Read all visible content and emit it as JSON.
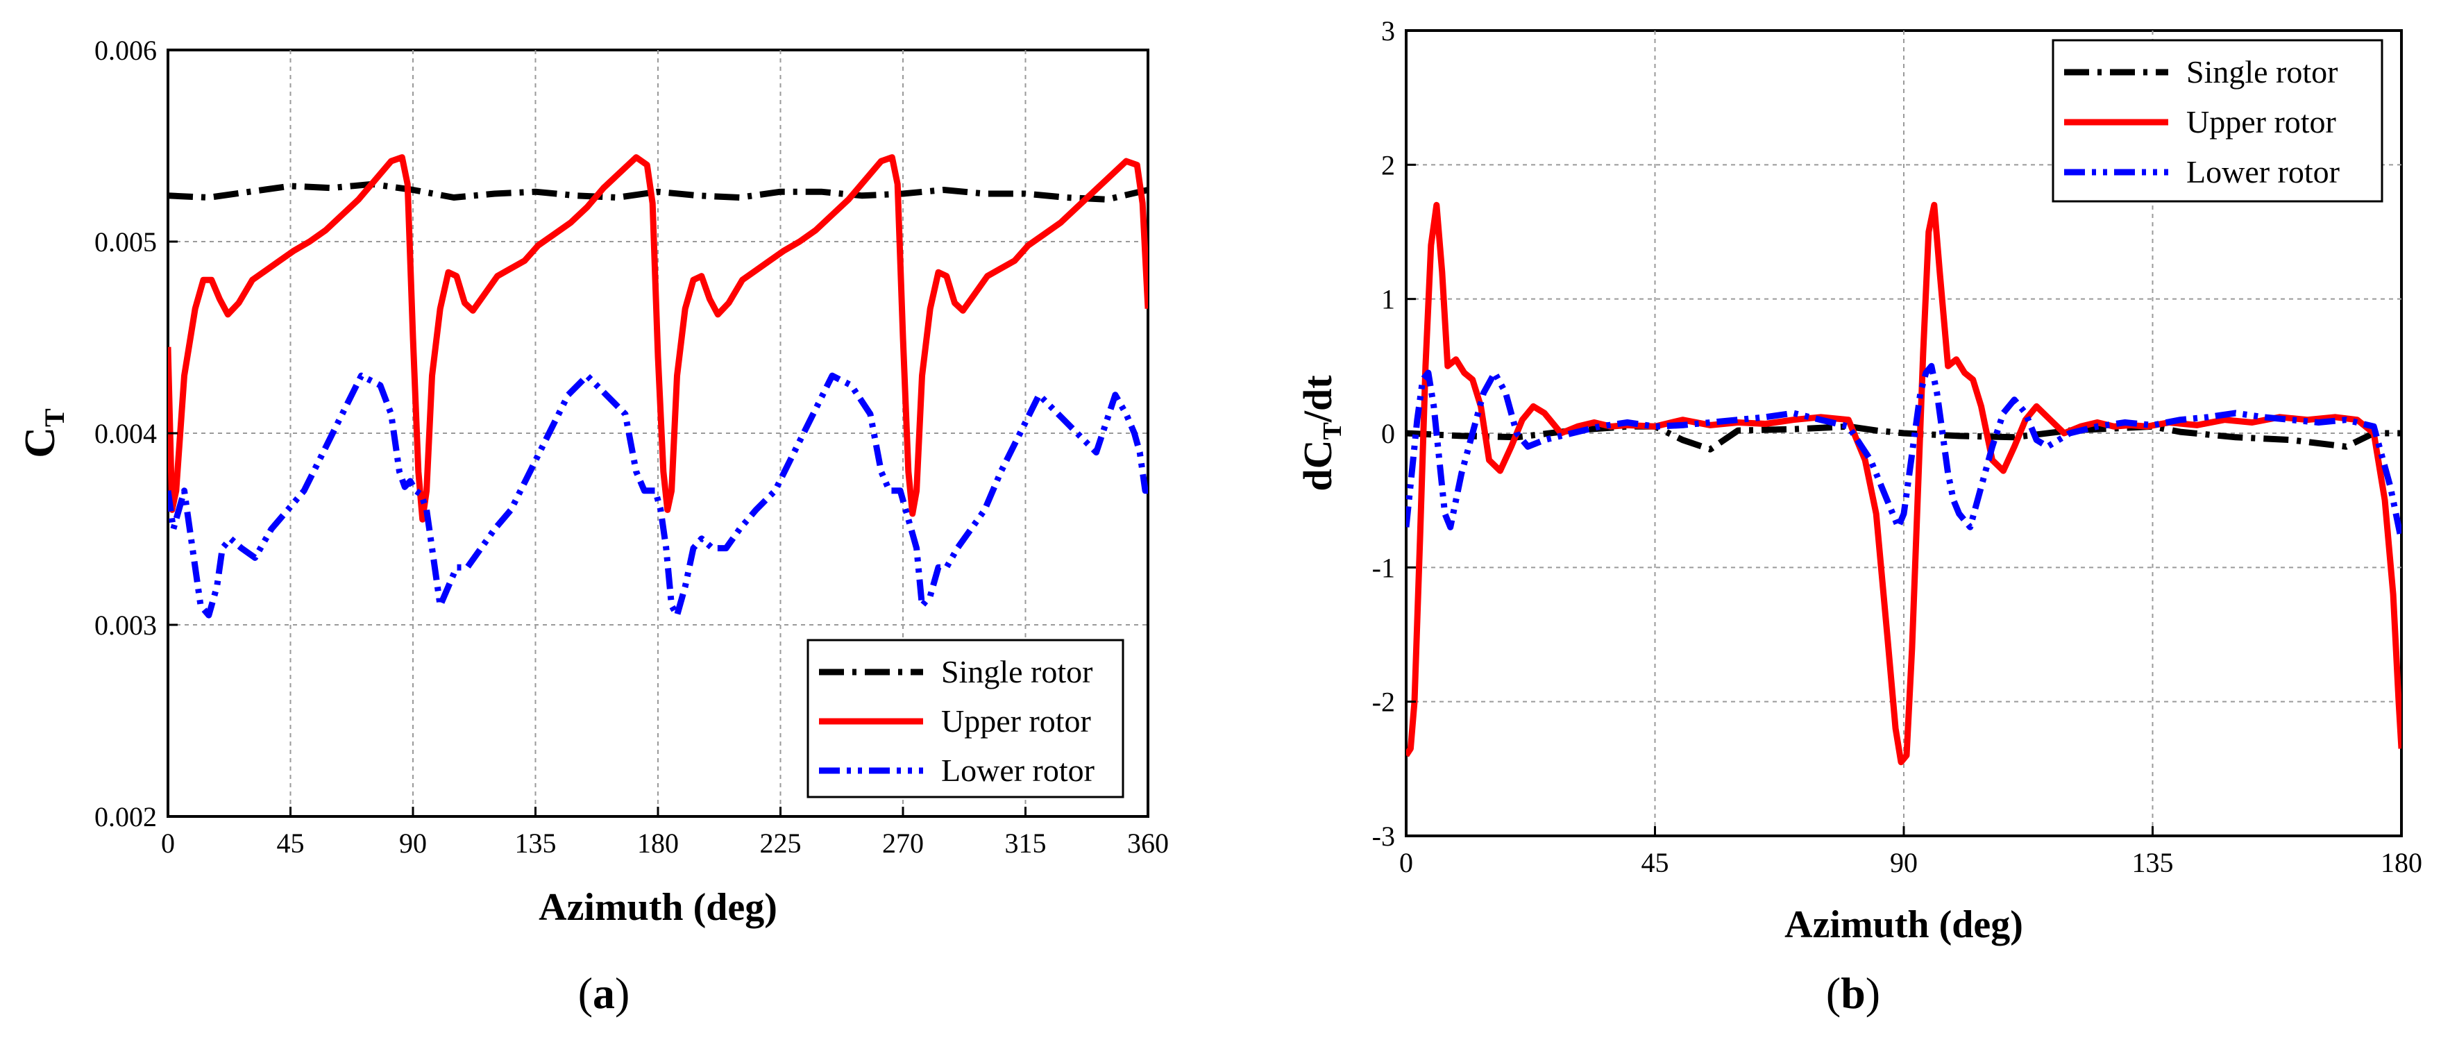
{
  "chart_data": [
    {
      "type": "line",
      "caption": {
        "open": "(",
        "letter": "a",
        "close": ")"
      },
      "xlabel": "Azimuth (deg)",
      "ylabel": {
        "main": "C",
        "sub": "T"
      },
      "xlim": [
        0,
        360
      ],
      "ylim": [
        0.002,
        0.006
      ],
      "xticks": [
        0,
        45,
        90,
        135,
        180,
        225,
        270,
        315,
        360
      ],
      "xtick_labels": [
        "0",
        "45",
        "90",
        "135",
        "180",
        "225",
        "270",
        "315",
        "360"
      ],
      "yticks": [
        0.002,
        0.003,
        0.004,
        0.005,
        0.006
      ],
      "ytick_labels": [
        "0.002",
        "0.003",
        "0.004",
        "0.005",
        "0.006"
      ],
      "grid": true,
      "legend_position": "bottom-right",
      "series": [
        {
          "name": "Single rotor",
          "color": "#000000",
          "style": "dashdot",
          "x": [
            0,
            15,
            30,
            45,
            60,
            75,
            90,
            105,
            120,
            135,
            150,
            165,
            180,
            195,
            210,
            225,
            240,
            255,
            270,
            285,
            300,
            315,
            330,
            345,
            360
          ],
          "y": [
            0.00524,
            0.00523,
            0.00526,
            0.00529,
            0.00528,
            0.0053,
            0.00527,
            0.00523,
            0.00525,
            0.00526,
            0.00524,
            0.00523,
            0.00526,
            0.00524,
            0.00523,
            0.00526,
            0.00526,
            0.00524,
            0.00525,
            0.00527,
            0.00525,
            0.00525,
            0.00523,
            0.00522,
            0.00527
          ]
        },
        {
          "name": "Upper rotor",
          "color": "#ff0000",
          "style": "solid",
          "x": [
            0,
            1.5,
            3,
            6,
            10,
            13,
            16,
            19,
            22,
            26,
            31,
            36,
            41,
            46,
            52,
            58,
            64,
            70,
            76,
            82,
            86,
            88,
            90,
            92,
            93.5,
            95,
            97,
            100,
            103,
            106,
            109,
            112,
            116,
            121,
            126,
            131,
            136,
            142,
            148,
            154,
            160,
            166,
            172,
            176,
            178,
            180,
            182,
            183.5,
            185,
            187,
            190,
            193,
            196,
            199,
            202,
            206,
            211,
            216,
            221,
            226,
            232,
            238,
            244,
            250,
            256,
            262,
            266,
            268,
            270,
            272,
            273.5,
            275,
            277,
            280,
            283,
            286,
            289,
            292,
            296,
            301,
            306,
            311,
            316,
            322,
            328,
            334,
            340,
            346,
            352,
            356,
            358,
            360
          ],
          "y": [
            0.00445,
            0.0036,
            0.0037,
            0.0043,
            0.00465,
            0.0048,
            0.0048,
            0.0047,
            0.00462,
            0.00468,
            0.0048,
            0.00485,
            0.0049,
            0.00495,
            0.005,
            0.00506,
            0.00514,
            0.00522,
            0.00532,
            0.00542,
            0.00544,
            0.0053,
            0.0045,
            0.0038,
            0.00355,
            0.0037,
            0.0043,
            0.00465,
            0.00484,
            0.00482,
            0.00468,
            0.00464,
            0.00472,
            0.00482,
            0.00486,
            0.0049,
            0.00498,
            0.00504,
            0.0051,
            0.00518,
            0.00528,
            0.00536,
            0.00544,
            0.0054,
            0.0052,
            0.0044,
            0.0038,
            0.0036,
            0.0037,
            0.0043,
            0.00465,
            0.0048,
            0.00482,
            0.0047,
            0.00462,
            0.00468,
            0.0048,
            0.00485,
            0.0049,
            0.00495,
            0.005,
            0.00506,
            0.00514,
            0.00522,
            0.00532,
            0.00542,
            0.00544,
            0.0053,
            0.0045,
            0.0038,
            0.00358,
            0.0037,
            0.0043,
            0.00465,
            0.00484,
            0.00482,
            0.00468,
            0.00464,
            0.00472,
            0.00482,
            0.00486,
            0.0049,
            0.00498,
            0.00504,
            0.0051,
            0.00518,
            0.00526,
            0.00534,
            0.00542,
            0.0054,
            0.0052,
            0.00465
          ]
        },
        {
          "name": "Lower rotor",
          "color": "#0000ff",
          "style": "dashdotdot",
          "x": [
            0,
            2,
            4,
            6,
            9,
            12,
            15,
            18,
            20,
            23,
            27,
            32,
            38,
            44,
            50,
            57,
            64,
            71,
            78,
            82,
            85,
            87,
            89,
            91,
            93,
            95,
            97,
            100,
            103,
            106,
            110,
            115,
            120,
            126,
            133,
            140,
            147,
            154,
            161,
            168,
            172,
            175,
            177,
            179,
            181,
            183,
            185,
            187,
            190,
            193,
            196,
            200,
            205,
            210,
            216,
            223,
            230,
            237,
            244,
            251,
            258,
            262,
            265,
            267,
            269,
            271,
            273,
            275,
            277,
            280,
            283,
            286,
            290,
            295,
            300,
            306,
            313,
            320,
            327,
            334,
            341,
            348,
            352,
            355,
            357,
            359,
            360
          ],
          "y": [
            0.0037,
            0.0035,
            0.0036,
            0.0037,
            0.0034,
            0.0031,
            0.00305,
            0.0032,
            0.0034,
            0.00345,
            0.0034,
            0.00335,
            0.0035,
            0.0036,
            0.0037,
            0.0039,
            0.0041,
            0.0043,
            0.00425,
            0.0041,
            0.0038,
            0.00372,
            0.00375,
            0.0037,
            0.00368,
            0.0036,
            0.0034,
            0.0031,
            0.0032,
            0.0033,
            0.0033,
            0.0034,
            0.0035,
            0.0036,
            0.0038,
            0.004,
            0.0042,
            0.0043,
            0.0042,
            0.0041,
            0.0038,
            0.0037,
            0.0037,
            0.0037,
            0.0036,
            0.0034,
            0.0031,
            0.00305,
            0.0032,
            0.0034,
            0.00345,
            0.0034,
            0.0034,
            0.0035,
            0.0036,
            0.0037,
            0.0039,
            0.0041,
            0.0043,
            0.00425,
            0.0041,
            0.0038,
            0.0037,
            0.0037,
            0.0037,
            0.0036,
            0.0035,
            0.0034,
            0.0031,
            0.00315,
            0.0033,
            0.0033,
            0.0034,
            0.0035,
            0.0036,
            0.0038,
            0.004,
            0.0042,
            0.0041,
            0.004,
            0.0039,
            0.0042,
            0.0041,
            0.004,
            0.0039,
            0.0037,
            0.0037
          ]
        }
      ]
    },
    {
      "type": "line",
      "caption": {
        "open": "(",
        "letter": "b",
        "close": ")"
      },
      "xlabel": "Azimuth (deg)",
      "ylabel": {
        "pre": "dC",
        "sub": "T",
        "post": "/dt"
      },
      "xlim": [
        0,
        180
      ],
      "ylim": [
        -3,
        3
      ],
      "xticks": [
        0,
        45,
        90,
        135,
        180
      ],
      "xtick_labels": [
        "0",
        "45",
        "90",
        "135",
        "180"
      ],
      "yticks": [
        -3,
        -2,
        -1,
        0,
        1,
        2,
        3
      ],
      "ytick_labels": [
        "-3",
        "-2",
        "-1",
        "0",
        "1",
        "2",
        "3"
      ],
      "grid": true,
      "legend_position": "top-right",
      "series": [
        {
          "name": "Single rotor",
          "color": "#000000",
          "style": "dashdot",
          "x": [
            0,
            10,
            20,
            30,
            40,
            45,
            50,
            55,
            60,
            70,
            80,
            85,
            90,
            100,
            110,
            120,
            130,
            135,
            140,
            150,
            160,
            170,
            175,
            180
          ],
          "y": [
            0,
            -0.02,
            -0.03,
            0.02,
            0.05,
            0.05,
            -0.05,
            -0.12,
            0.02,
            0.03,
            0.05,
            0.02,
            0,
            -0.02,
            -0.03,
            0.02,
            0.04,
            0.05,
            0.01,
            -0.03,
            -0.05,
            -0.1,
            0,
            0
          ]
        },
        {
          "name": "Upper rotor",
          "color": "#ff0000",
          "style": "solid",
          "x": [
            0,
            0.8,
            1.5,
            2.5,
            3.5,
            4.5,
            5.5,
            6.5,
            7.5,
            9,
            10.5,
            12,
            13.5,
            15,
            17,
            19,
            21,
            23,
            25,
            28,
            31,
            34,
            37,
            40,
            45,
            50,
            55,
            60,
            65,
            70,
            75,
            80,
            83,
            85,
            87,
            88.5,
            89.5,
            90.5,
            91.5,
            92.5,
            93.5,
            94.5,
            95.5,
            96.5,
            98,
            99.5,
            101,
            102.5,
            104,
            106,
            108,
            110,
            112,
            114,
            116,
            119,
            122,
            125,
            128,
            131,
            134,
            138,
            143,
            148,
            153,
            158,
            163,
            168,
            172,
            175,
            177,
            178.5,
            179.5,
            180
          ],
          "y": [
            -2.4,
            -2.35,
            -2.0,
            -0.8,
            0.5,
            1.4,
            1.7,
            1.2,
            0.5,
            0.55,
            0.45,
            0.4,
            0.2,
            -0.2,
            -0.28,
            -0.1,
            0.1,
            0.2,
            0.15,
            0,
            0.05,
            0.08,
            0.05,
            0.06,
            0.05,
            0.1,
            0.06,
            0.08,
            0.07,
            0.1,
            0.12,
            0.1,
            -0.2,
            -0.6,
            -1.5,
            -2.2,
            -2.45,
            -2.4,
            -1.6,
            -0.5,
            0.6,
            1.5,
            1.7,
            1.2,
            0.5,
            0.55,
            0.45,
            0.4,
            0.2,
            -0.2,
            -0.28,
            -0.1,
            0.1,
            0.2,
            0.12,
            0,
            0.05,
            0.08,
            0.05,
            0.06,
            0.05,
            0.08,
            0.06,
            0.1,
            0.08,
            0.12,
            0.1,
            0.12,
            0.1,
            0,
            -0.5,
            -1.2,
            -2.0,
            -2.35
          ]
        },
        {
          "name": "Lower rotor",
          "color": "#0000ff",
          "style": "dashdotdot",
          "x": [
            0,
            1,
            2,
            3,
            4,
            5,
            6,
            7,
            8,
            9,
            10,
            12,
            14,
            16,
            18,
            20,
            22,
            25,
            30,
            35,
            40,
            45,
            50,
            55,
            60,
            65,
            70,
            75,
            80,
            84,
            86,
            88,
            89,
            90,
            91,
            92,
            93,
            94,
            95,
            96,
            97,
            98,
            99,
            100,
            102,
            104,
            106,
            108,
            110,
            112,
            114,
            116,
            118,
            120,
            125,
            130,
            135,
            140,
            145,
            150,
            155,
            160,
            165,
            170,
            175,
            178,
            180
          ],
          "y": [
            -0.7,
            -0.3,
            0.1,
            0.4,
            0.45,
            0.2,
            -0.2,
            -0.6,
            -0.7,
            -0.5,
            -0.3,
            0,
            0.3,
            0.45,
            0.3,
            0,
            -0.1,
            -0.05,
            0,
            0.05,
            0.08,
            0.05,
            0.06,
            0.08,
            0.1,
            0.12,
            0.15,
            0.1,
            0.05,
            -0.2,
            -0.4,
            -0.6,
            -0.7,
            -0.6,
            -0.3,
            0,
            0.3,
            0.45,
            0.5,
            0.3,
            0,
            -0.3,
            -0.5,
            -0.6,
            -0.7,
            -0.4,
            -0.1,
            0.15,
            0.25,
            0.15,
            -0.05,
            -0.1,
            -0.05,
            0,
            0.05,
            0.08,
            0.06,
            0.1,
            0.12,
            0.15,
            0.12,
            0.1,
            0.08,
            0.1,
            0.05,
            -0.4,
            -0.8
          ]
        }
      ]
    }
  ]
}
